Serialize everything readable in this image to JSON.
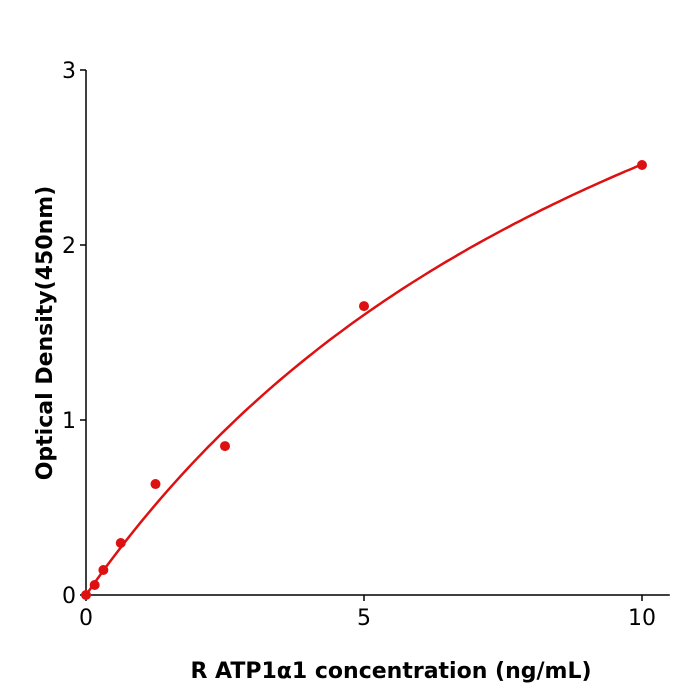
{
  "chart_data": {
    "type": "scatter",
    "title": "",
    "xlabel": "R  ATP1α1 concentration (ng/mL)",
    "ylabel": "Optical Density(450nm)",
    "xlim": [
      0,
      10.5
    ],
    "ylim": [
      0,
      3
    ],
    "xticks": [
      0,
      5,
      10
    ],
    "yticks": [
      0,
      1,
      2,
      3
    ],
    "grid": false,
    "color": "#dd1111",
    "points": [
      {
        "x": 0,
        "y": 0.0
      },
      {
        "x": 0.156,
        "y": 0.057
      },
      {
        "x": 0.3125,
        "y": 0.143
      },
      {
        "x": 0.625,
        "y": 0.297
      },
      {
        "x": 1.25,
        "y": 0.634
      },
      {
        "x": 2.5,
        "y": 0.851
      },
      {
        "x": 5,
        "y": 1.651
      },
      {
        "x": 10,
        "y": 2.457
      }
    ],
    "fit_line": true
  }
}
